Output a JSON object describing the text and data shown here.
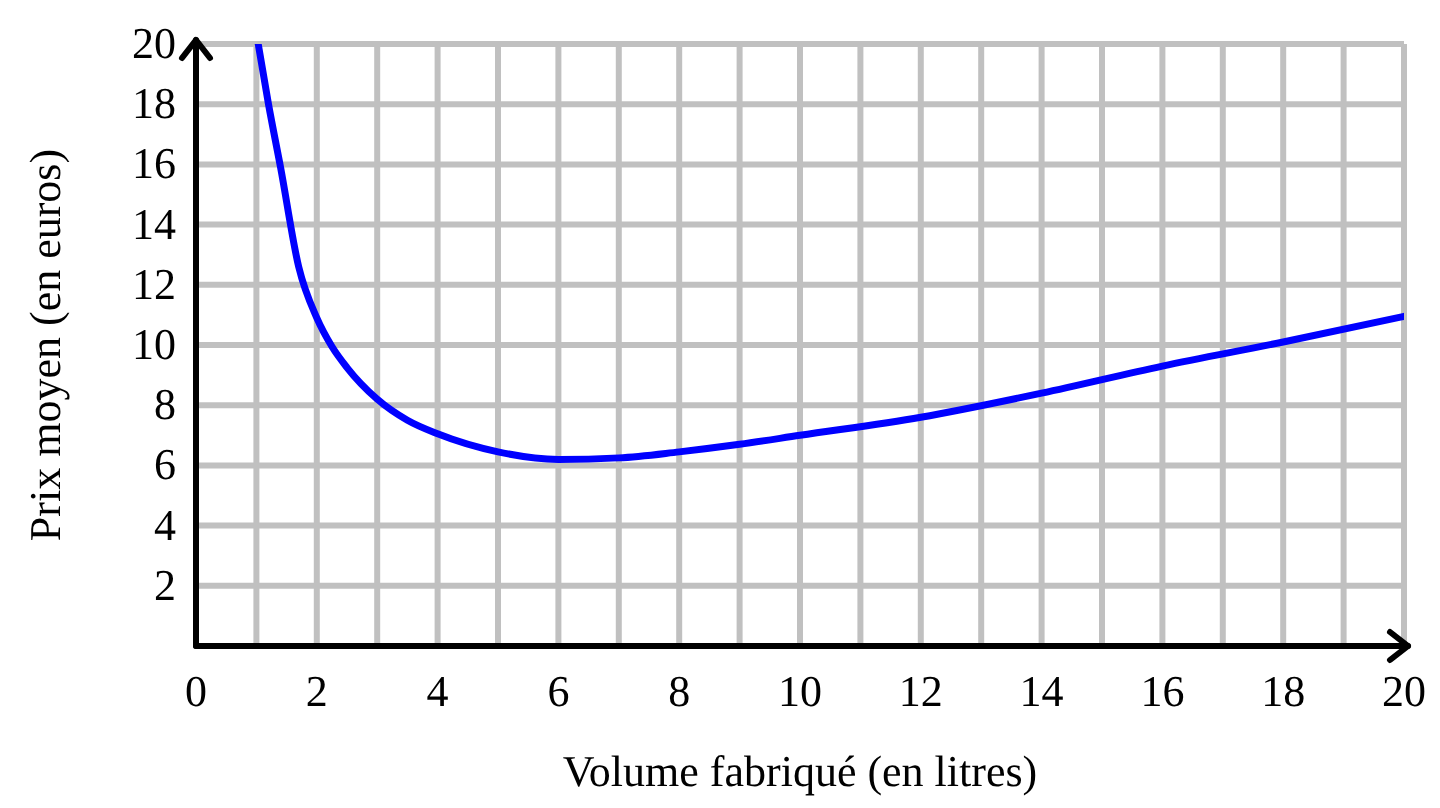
{
  "chart_data": {
    "type": "line",
    "xlabel": "Volume fabriqué (en litres)",
    "ylabel": "Prix moyen (en euros)",
    "xlim": [
      0,
      20
    ],
    "ylim": [
      0,
      20
    ],
    "xticks": [
      0,
      {
        "value": 1,
        "label": null
      },
      2,
      {
        "value": 3,
        "label": null
      },
      4,
      {
        "value": 5,
        "label": null
      },
      6,
      {
        "value": 7,
        "label": null
      },
      8,
      {
        "value": 9,
        "label": null
      },
      10,
      {
        "value": 11,
        "label": null
      },
      12,
      {
        "value": 13,
        "label": null
      },
      14,
      {
        "value": 15,
        "label": null
      },
      16,
      {
        "value": 17,
        "label": null
      },
      18,
      {
        "value": 19,
        "label": null
      },
      20
    ],
    "yticks": [
      2,
      4,
      6,
      8,
      10,
      12,
      14,
      16,
      18,
      20
    ],
    "grid": true,
    "marker": "none",
    "line_style": "solid",
    "series": [
      {
        "color": "#0000ff",
        "x": [
          1.03,
          1.2,
          1.4,
          1.7,
          2,
          2.25,
          2.5,
          3,
          3.5,
          4,
          5,
          6,
          7,
          8,
          9,
          10,
          12,
          14,
          16,
          18,
          20
        ],
        "values": [
          20,
          18,
          15.9,
          12.6,
          10.9,
          9.95,
          9.25,
          8.2,
          7.5,
          7.05,
          6.45,
          6.2,
          6.25,
          6.45,
          6.7,
          7.0,
          7.6,
          8.4,
          9.3,
          10.1,
          10.95
        ]
      }
    ]
  }
}
